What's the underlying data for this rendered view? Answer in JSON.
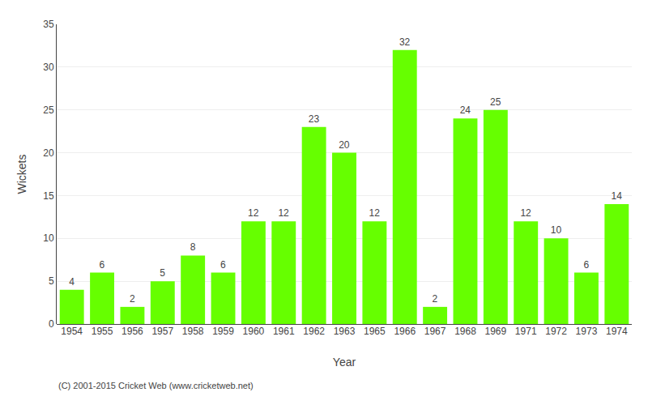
{
  "chart_data": {
    "type": "bar",
    "xlabel": "Year",
    "ylabel": "Wickets",
    "categories": [
      "1954",
      "1955",
      "1956",
      "1957",
      "1958",
      "1959",
      "1960",
      "1961",
      "1962",
      "1963",
      "1965",
      "1966",
      "1967",
      "1968",
      "1969",
      "1971",
      "1972",
      "1973",
      "1974"
    ],
    "values": [
      4,
      6,
      2,
      5,
      8,
      6,
      12,
      12,
      23,
      20,
      12,
      32,
      2,
      24,
      25,
      12,
      10,
      6,
      14
    ],
    "color": "#66ff00",
    "ylim": [
      0,
      35
    ],
    "yticks": [
      0,
      5,
      10,
      15,
      20,
      25,
      30,
      35
    ],
    "grid": true,
    "data_labels": true,
    "annotations": [
      "(C) 2001-2015 Cricket Web (www.cricketweb.net)"
    ]
  }
}
